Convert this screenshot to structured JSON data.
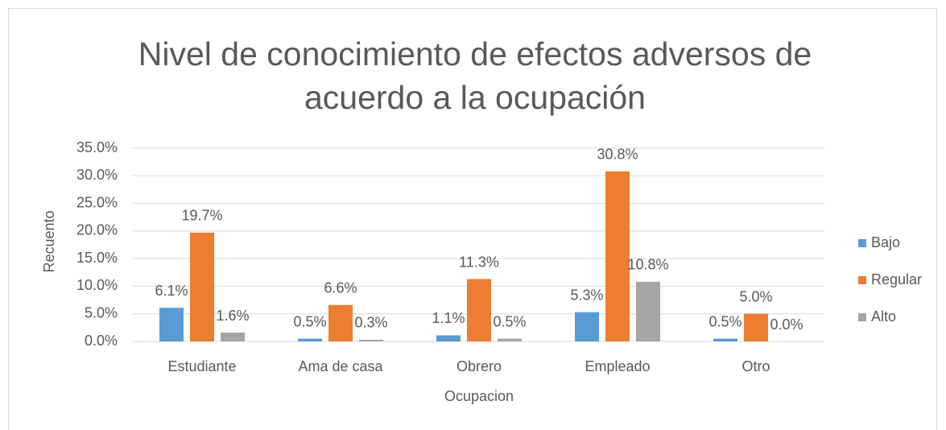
{
  "chart_data": {
    "type": "bar",
    "title": "Nivel de conocimiento de efectos adversos de acuerdo a la ocupación",
    "x_label": "Ocupacion",
    "y_label": "Recuento",
    "categories": [
      "Estudiante",
      "Ama de casa",
      "Obrero",
      "Empleado",
      "Otro"
    ],
    "series": [
      {
        "name": "Bajo",
        "color": "#5b9bd5",
        "values": [
          6.1,
          0.5,
          1.1,
          5.3,
          0.5
        ],
        "value_labels": [
          "6.1%",
          "0.5%",
          "1.1%",
          "5.3%",
          "0.5%"
        ]
      },
      {
        "name": "Regular",
        "color": "#ed7d31",
        "values": [
          19.7,
          6.6,
          11.3,
          30.8,
          5.0
        ],
        "value_labels": [
          "19.7%",
          "6.6%",
          "11.3%",
          "30.8%",
          "5.0%"
        ]
      },
      {
        "name": "Alto",
        "color": "#a5a5a5",
        "values": [
          1.6,
          0.3,
          0.5,
          10.8,
          0.0
        ],
        "value_labels": [
          "1.6%",
          "0.3%",
          "0.5%",
          "10.8%",
          "0.0%"
        ]
      }
    ],
    "ylim": [
      0,
      35
    ],
    "yticks": [
      {
        "value": 0,
        "label": "0.0%"
      },
      {
        "value": 5,
        "label": "5.0%"
      },
      {
        "value": 10,
        "label": "10.0%"
      },
      {
        "value": 15,
        "label": "15.0%"
      },
      {
        "value": 20,
        "label": "20.0%"
      },
      {
        "value": 25,
        "label": "25.0%"
      },
      {
        "value": 30,
        "label": "30.0%"
      },
      {
        "value": 35,
        "label": "35.0%"
      }
    ],
    "grid": true,
    "legend": "right"
  }
}
